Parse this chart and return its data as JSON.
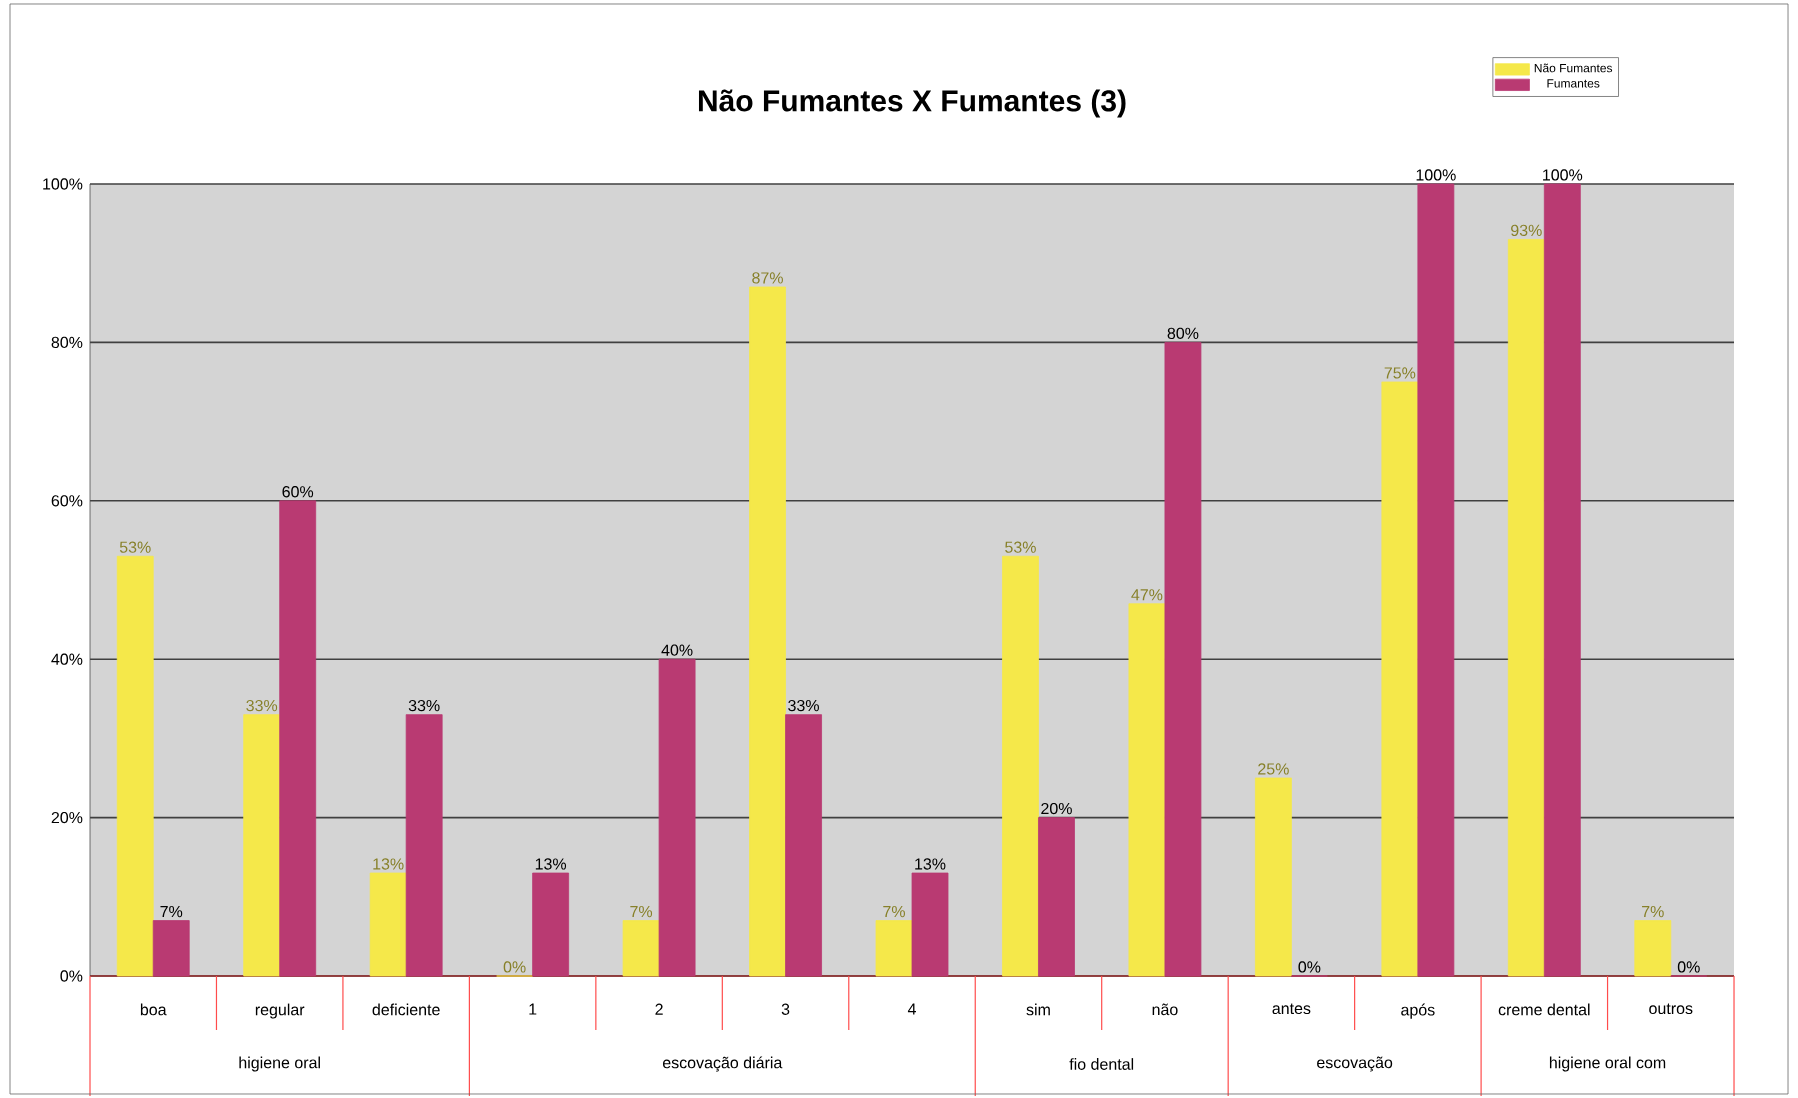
{
  "chart_data": {
    "type": "bar",
    "title": "Não Fumantes X Fumantes (3)",
    "categories": [
      "boa",
      "regular",
      "deficiente",
      "1",
      "2",
      "3",
      "4",
      "sim",
      "não",
      "antes",
      "após",
      "creme dental",
      "outros"
    ],
    "series": [
      {
        "name": "Não Fumantes",
        "color": "#f5e84a",
        "values": [
          53,
          33,
          13,
          0,
          7,
          87,
          7,
          53,
          47,
          25,
          75,
          93,
          7
        ],
        "value_labels": [
          "53%",
          "33%",
          "13%",
          "0%",
          "7%",
          "87%",
          "7%",
          "53%",
          "47%",
          "25%",
          "75%",
          "93%",
          "7%"
        ]
      },
      {
        "name": "Fumantes",
        "color": "#b93a72",
        "values": [
          7,
          60,
          33,
          13,
          40,
          33,
          13,
          20,
          80,
          0,
          100,
          100,
          0
        ],
        "value_labels": [
          "7%",
          "60%",
          "33%",
          "13%",
          "40%",
          "33%",
          "13%",
          "20%",
          "80%",
          "0%",
          "100%",
          "100%",
          "0%"
        ]
      }
    ],
    "ylim": [
      0,
      100
    ],
    "yticks": [
      {
        "value": 0,
        "label": "0%"
      },
      {
        "value": 20,
        "label": "20%"
      },
      {
        "value": 40,
        "label": "40%"
      },
      {
        "value": 60,
        "label": "60%"
      },
      {
        "value": 80,
        "label": "80%"
      },
      {
        "value": 100,
        "label": "100%"
      }
    ],
    "grid": "y",
    "legend": "top right",
    "annotations": [
      "higiene oral",
      "escovação diária",
      "fio dental",
      "escovação",
      "higiene oral com"
    ]
  }
}
